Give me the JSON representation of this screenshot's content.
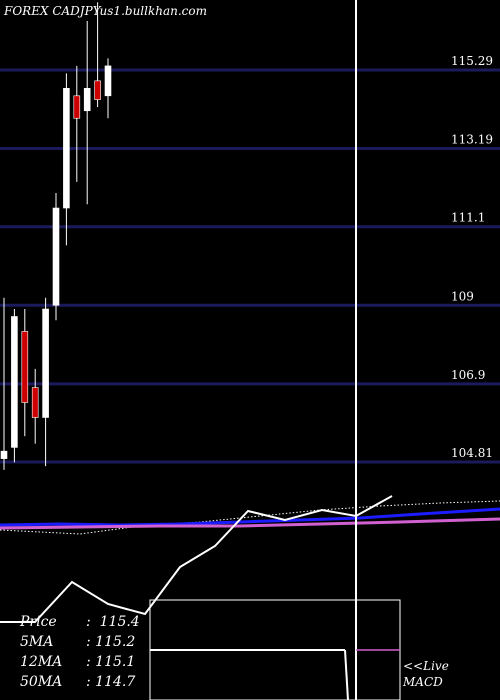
{
  "header": {
    "title": "FOREX  CADJPYus1.bullkhan.com"
  },
  "chart_data": {
    "type": "candlestick",
    "symbol": "CADJPYus1",
    "price_axis": {
      "ticks": [
        "115.29",
        "113.19",
        "111.1",
        "109",
        "106.9",
        "104.81"
      ],
      "range": [
        103.0,
        117.4
      ]
    },
    "candles": [
      {
        "o": 104.9,
        "h": 109.2,
        "l": 104.6,
        "c": 105.1,
        "dir": "up"
      },
      {
        "o": 105.2,
        "h": 108.9,
        "l": 104.8,
        "c": 108.7,
        "dir": "up"
      },
      {
        "o": 108.3,
        "h": 108.9,
        "l": 105.5,
        "c": 106.4,
        "dir": "down"
      },
      {
        "o": 106.8,
        "h": 107.3,
        "l": 105.3,
        "c": 106.0,
        "dir": "down"
      },
      {
        "o": 106.0,
        "h": 109.2,
        "l": 104.7,
        "c": 108.9,
        "dir": "up"
      },
      {
        "o": 109.0,
        "h": 112.0,
        "l": 108.6,
        "c": 111.6,
        "dir": "up"
      },
      {
        "o": 111.6,
        "h": 115.2,
        "l": 110.6,
        "c": 114.8,
        "dir": "up"
      },
      {
        "o": 114.6,
        "h": 115.4,
        "l": 112.3,
        "c": 114.0,
        "dir": "down"
      },
      {
        "o": 114.2,
        "h": 116.6,
        "l": 111.7,
        "c": 114.8,
        "dir": "up"
      },
      {
        "o": 115.0,
        "h": 117.1,
        "l": 114.3,
        "c": 114.5,
        "dir": "down"
      },
      {
        "o": 114.6,
        "h": 115.6,
        "l": 114.0,
        "c": 115.4,
        "dir": "up"
      }
    ],
    "indicator_lines": [
      {
        "name": "5MA",
        "color": "#ffffff",
        "style": "dotted",
        "values": [
          0.28,
          0.28,
          0.3,
          0.34,
          0.42,
          0.55,
          0.68,
          0.78,
          0.85,
          0.9,
          0.92
        ]
      },
      {
        "name": "12MA",
        "color": "#1c1cff",
        "style": "solid",
        "values": [
          0.22,
          0.23,
          0.24,
          0.26,
          0.3,
          0.36,
          0.44,
          0.54,
          0.64,
          0.74,
          0.82
        ]
      },
      {
        "name": "50MA",
        "color": "#d060d0",
        "style": "solid",
        "values": [
          0.18,
          0.19,
          0.2,
          0.21,
          0.23,
          0.26,
          0.3,
          0.36,
          0.42,
          0.5,
          0.58
        ]
      },
      {
        "name": "price_line",
        "color": "#ffffff",
        "style": "solid",
        "values": [
          0.1,
          0.06,
          0.05,
          0.1,
          0.25,
          0.4,
          0.55,
          0.62,
          0.72,
          0.86,
          1.0
        ]
      }
    ]
  },
  "info_panel": {
    "rows": [
      {
        "label": "Price",
        "sep": ":",
        "value": "115.4"
      },
      {
        "label": "5MA",
        "sep": ":",
        "value": "115.2"
      },
      {
        "label": "12MA",
        "sep": ":",
        "value": "115.1"
      },
      {
        "label": "50MA",
        "sep": ":",
        "value": "114.7"
      }
    ]
  },
  "macd": {
    "label": "<<Live MACD"
  },
  "colors": {
    "background": "#000000",
    "gridline": "#1a1a5c",
    "up_candle": "#ffffff",
    "down_candle": "#cc0000",
    "ma12": "#1c1cff",
    "ma50": "#d060d0"
  }
}
